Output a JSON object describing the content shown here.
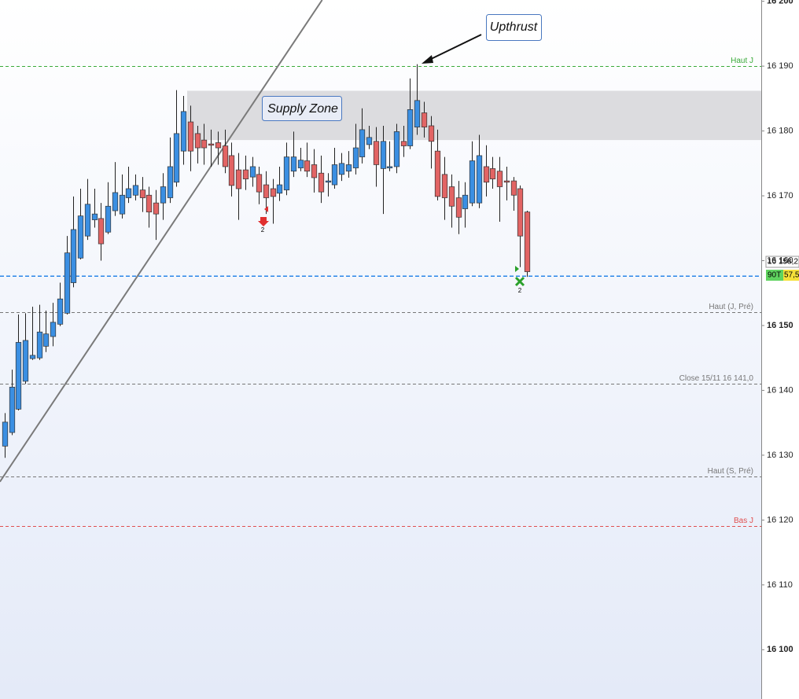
{
  "chart_data": {
    "type": "candlestick",
    "ylim": [
      16092.4,
      16200.2
    ],
    "yticks": [
      {
        "value": 16100,
        "label": "16 100"
      },
      {
        "value": 16110,
        "label": "16 110"
      },
      {
        "value": 16120,
        "label": "16 120"
      },
      {
        "value": 16130,
        "label": "16 130"
      },
      {
        "value": 16140,
        "label": "16 140"
      },
      {
        "value": 16150,
        "label": "16 150"
      },
      {
        "value": 16160,
        "label": "16 160"
      },
      {
        "value": 16170,
        "label": "16 170"
      },
      {
        "value": 16180,
        "label": "16 180"
      },
      {
        "value": 16190,
        "label": "16 190"
      },
      {
        "value": 16200,
        "label": "16 200"
      }
    ],
    "series": {
      "open": [
        16131.4,
        16133.5,
        16137.1,
        16141.4,
        16144.9,
        16145.0,
        16146.8,
        16148.3,
        16150.2,
        16151.9,
        16156.6,
        16160.4,
        16163.8,
        16166.3,
        16166.5,
        16164.4,
        16167.7,
        16167.2,
        16169.7,
        16170.1,
        16170.9,
        16170.1,
        16168.9,
        16168.9,
        16169.7,
        16172.1,
        16176.9,
        16181.4,
        16179.6,
        16178.6,
        16178.0,
        16178.2,
        16177.7,
        16176.2,
        16174.0,
        16174.0,
        16172.9,
        16173.3,
        16171.7,
        16171.1,
        16170.4,
        16170.9,
        16173.8,
        16174.3,
        16175.4,
        16174.8,
        16173.5,
        16172.1,
        16171.7,
        16173.3,
        16173.8,
        16174.3,
        16176.0,
        16177.9,
        16178.4,
        16174.2,
        16174.3,
        16174.5,
        16178.4,
        16177.7,
        16180.6,
        16182.8,
        16180.8,
        16176.9,
        16173.3,
        16171.4,
        16169.7,
        16168.0,
        16168.9,
        16168.9,
        16174.5,
        16174.2,
        16173.8,
        16172.3,
        16172.3,
        16171.1,
        16167.5
      ],
      "high": [
        16136.5,
        16143.2,
        16151.7,
        16151.9,
        16152.9,
        16153.2,
        16152.3,
        16153.5,
        16156.6,
        16163.8,
        16169.9,
        16171.1,
        16172.6,
        16171.1,
        16168.9,
        16172.1,
        16175.2,
        16173.3,
        16174.5,
        16173.3,
        16172.9,
        16171.4,
        16170.9,
        16173.5,
        16179.0,
        16186.3,
        16185.4,
        16183.9,
        16180.8,
        16181.1,
        16180.2,
        16179.9,
        16180.2,
        16178.2,
        16176.6,
        16176.2,
        16176.0,
        16174.5,
        16173.8,
        16172.6,
        16174.5,
        16178.2,
        16179.9,
        16177.4,
        16178.2,
        16177.2,
        16176.2,
        16173.5,
        16177.4,
        16176.6,
        16176.9,
        16181.1,
        16183.5,
        16180.8,
        16180.6,
        16180.8,
        16178.4,
        16181.1,
        16180.8,
        16188.1,
        16190.3,
        16184.5,
        16182.3,
        16180.2,
        16176.0,
        16173.3,
        16172.3,
        16172.1,
        16178.4,
        16179.4,
        16177.8,
        16176.0,
        16176.0,
        16174.5,
        16172.9,
        16171.6,
        16167.7
      ],
      "low": [
        16129.6,
        16133.1,
        16136.9,
        16141.0,
        16144.7,
        16144.7,
        16145.9,
        16146.8,
        16149.9,
        16151.7,
        16155.9,
        16160.2,
        16163.2,
        16165.1,
        16160.0,
        16164.1,
        16166.9,
        16166.5,
        16168.9,
        16169.3,
        16167.5,
        16165.1,
        16163.2,
        16166.3,
        16168.9,
        16171.4,
        16174.8,
        16173.8,
        16175.0,
        16174.8,
        16174.5,
        16174.8,
        16173.5,
        16169.9,
        16166.3,
        16170.9,
        16171.4,
        16168.7,
        16167.2,
        16165.7,
        16169.2,
        16170.1,
        16172.9,
        16173.8,
        16172.9,
        16170.5,
        16168.9,
        16169.9,
        16171.1,
        16172.3,
        16172.8,
        16173.3,
        16175.0,
        16177.2,
        16171.4,
        16167.2,
        16173.8,
        16173.5,
        16176.0,
        16177.2,
        16179.4,
        16179.0,
        16174.2,
        16169.3,
        16166.3,
        16165.1,
        16164.1,
        16165.1,
        16168.4,
        16168.1,
        16169.9,
        16171.1,
        16166.0,
        16169.3,
        16167.7,
        16159.0,
        16157.5
      ],
      "close": [
        16135.1,
        16140.5,
        16147.4,
        16147.7,
        16145.4,
        16149.0,
        16148.7,
        16150.5,
        16154.1,
        16161.2,
        16164.8,
        16166.9,
        16168.7,
        16167.2,
        16162.6,
        16168.4,
        16170.5,
        16170.1,
        16171.1,
        16171.6,
        16169.7,
        16167.5,
        16167.2,
        16171.4,
        16174.5,
        16179.6,
        16183.0,
        16176.9,
        16177.4,
        16177.4,
        16177.8,
        16177.4,
        16174.5,
        16171.6,
        16171.1,
        16172.6,
        16174.5,
        16170.6,
        16169.7,
        16169.9,
        16171.7,
        16176.0,
        16176.0,
        16175.5,
        16173.8,
        16172.8,
        16170.6,
        16172.3,
        16174.8,
        16175.0,
        16174.8,
        16177.4,
        16180.2,
        16179.0,
        16174.8,
        16178.4,
        16174.5,
        16179.9,
        16177.7,
        16183.3,
        16184.7,
        16180.6,
        16178.4,
        16169.9,
        16169.7,
        16168.4,
        16166.7,
        16170.1,
        16175.4,
        16176.2,
        16172.1,
        16172.6,
        16171.4,
        16172.1,
        16170.1,
        16163.8,
        16158.3
      ]
    },
    "up_color": "#3b8fe2",
    "down_color": "#e26464",
    "levels": [
      {
        "label": "Haut J",
        "value": 16190.0,
        "color": "#3aaa3a"
      },
      {
        "label": "Haut (J, Pré)",
        "value": 16152.1,
        "color": "#777777"
      },
      {
        "label": "Close 15/11 16 141,0",
        "value": 16141.0,
        "color": "#777777"
      },
      {
        "label": "Haut (S, Pré)",
        "value": 16126.7,
        "color": "#777777"
      },
      {
        "label": "Bas J",
        "value": 16119.1,
        "color": "#e05050"
      }
    ],
    "price_line": {
      "value": 16157.6,
      "color": "#2a86e8"
    },
    "supply_zone": {
      "label": "Supply Zone",
      "range": [
        16178.6,
        16186.2
      ]
    },
    "trendline": {
      "x": [
        -0.7,
        46.2
      ],
      "y": [
        16125.9,
        16200.2
      ]
    },
    "annotation": "Upthrust",
    "signals": [
      "2",
      "2"
    ],
    "price_tags": [
      "16 158,2",
      "90T",
      "57,5"
    ]
  }
}
